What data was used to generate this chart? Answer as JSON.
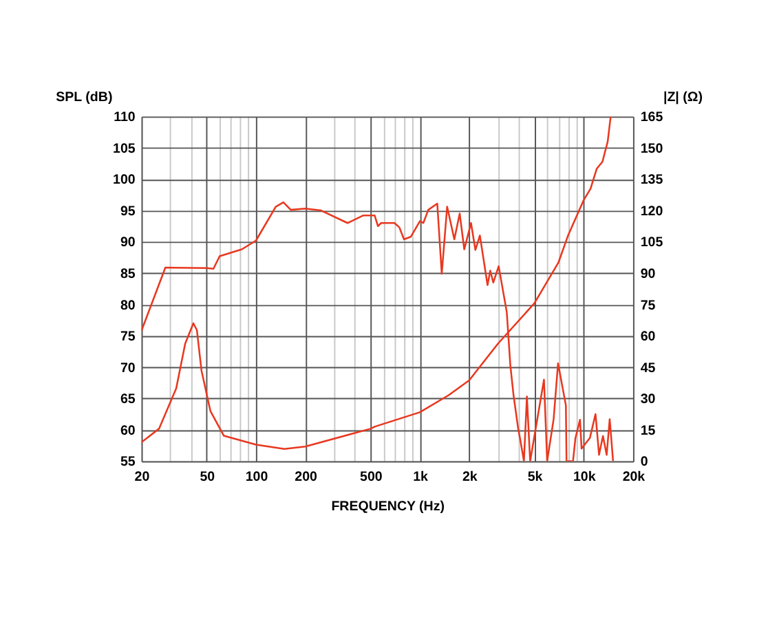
{
  "chart_data": {
    "type": "line",
    "xlabel": "FREQUENCY (Hz)",
    "ylabel": "SPL (dB)",
    "y2label": "|Z| (Ω)",
    "log": "x",
    "grid": true,
    "line_style": "solid",
    "marker": "none",
    "xlim": [
      20,
      20000
    ],
    "xticks": [
      20,
      {
        "value": 30,
        "label": null
      },
      {
        "value": 40,
        "label": null
      },
      50,
      {
        "value": 60,
        "label": null
      },
      {
        "value": 70,
        "label": null
      },
      {
        "value": 80,
        "label": null
      },
      {
        "value": 90,
        "label": null
      },
      100,
      200,
      {
        "value": 300,
        "label": null
      },
      {
        "value": 400,
        "label": null
      },
      500,
      {
        "value": 600,
        "label": null
      },
      {
        "value": 700,
        "label": null
      },
      {
        "value": 800,
        "label": null
      },
      {
        "value": 900,
        "label": null
      },
      {
        "value": 1000,
        "label": "1k"
      },
      {
        "value": 2000,
        "label": "2k"
      },
      {
        "value": 3000,
        "label": null
      },
      {
        "value": 4000,
        "label": null
      },
      {
        "value": 5000,
        "label": "5k"
      },
      {
        "value": 6000,
        "label": null
      },
      {
        "value": 7000,
        "label": null
      },
      {
        "value": 8000,
        "label": null
      },
      {
        "value": 9000,
        "label": null
      },
      {
        "value": 10000,
        "label": "10k"
      },
      {
        "value": 20000,
        "label": "20k"
      }
    ],
    "ylim": [
      55,
      110
    ],
    "yticks": [
      55,
      60,
      65,
      70,
      75,
      80,
      85,
      90,
      95,
      100,
      105,
      110
    ],
    "y2lim": [
      0,
      165
    ],
    "y2ticks": [
      0,
      15,
      30,
      45,
      60,
      75,
      90,
      105,
      120,
      135,
      150,
      165
    ],
    "series": [
      {
        "color": "#e8381f",
        "axis": "y",
        "x": [
          20,
          28,
          50,
          55,
          60,
          82,
          100,
          132,
          147,
          163,
          200,
          250,
          362,
          450,
          530,
          555,
          580,
          700,
          750,
          800,
          880,
          1000,
          1050,
          1126,
          1277,
          1360,
          1467,
          1623,
          1750,
          1866,
          2052,
          2183,
          2324,
          2588,
          2688,
          2805,
          3026,
          3390,
          3565,
          3730,
          3974,
          4100,
          4315,
          4500,
          4710,
          5720,
          5980,
          6550,
          6970,
          7780,
          7850,
          8600,
          8900,
          9490,
          9700,
          10900,
          11800,
          12400,
          13100,
          13800,
          14400,
          15100
        ],
        "values": [
          75.8,
          85.9,
          85.8,
          85.7,
          87.7,
          88.8,
          90.2,
          95.6,
          96.3,
          95.1,
          95.3,
          95.0,
          93.0,
          94.2,
          94.2,
          92.5,
          93.0,
          93.0,
          92.3,
          90.4,
          90.8,
          93.3,
          93.0,
          95.1,
          96.1,
          84.9,
          95.6,
          90.4,
          94.5,
          88.8,
          93.0,
          88.7,
          91.0,
          83.1,
          85.4,
          83.5,
          86.1,
          78.8,
          70.3,
          65.5,
          60.3,
          58.4,
          55,
          65.3,
          55,
          68.0,
          55,
          61.7,
          70.6,
          63.9,
          55,
          55,
          58.7,
          61.6,
          57,
          58.7,
          62.5,
          56,
          59,
          56,
          61.7,
          55
        ]
      },
      {
        "color": "#e8381f",
        "axis": "y2",
        "x": [
          20,
          25.6,
          32.6,
          37,
          41.5,
          43.6,
          46.5,
          52.7,
          63.6,
          100,
          149,
          200,
          500,
          530,
          1000,
          1500,
          2000,
          3000,
          5000,
          7000,
          8000,
          10000,
          11000,
          12000,
          13000,
          14000,
          14600
        ],
        "values": [
          9.0,
          15.5,
          34.8,
          56.3,
          66.0,
          62.7,
          43.4,
          24.0,
          12.2,
          7.9,
          5.8,
          7,
          15.5,
          16.5,
          23.4,
          31.6,
          38.7,
          56.3,
          75.6,
          95,
          107.8,
          125,
          130.4,
          140,
          143.3,
          153,
          165
        ]
      }
    ]
  }
}
